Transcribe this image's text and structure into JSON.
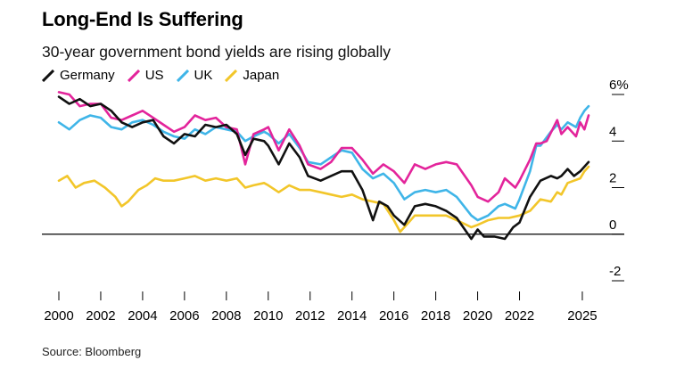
{
  "chart_data": {
    "type": "line",
    "title": "Long-End Is Suffering",
    "subtitle": "30-year government bond yields are rising globally",
    "source": "Source: Bloomberg",
    "xlim": [
      2000,
      2025.3
    ],
    "ylim": [
      -2,
      6
    ],
    "x_ticks": [
      {
        "value": 2000,
        "label": "2000"
      },
      {
        "value": 2002,
        "label": "2002"
      },
      {
        "value": 2004,
        "label": "2004"
      },
      {
        "value": 2006,
        "label": "2006"
      },
      {
        "value": 2008,
        "label": "2008"
      },
      {
        "value": 2010,
        "label": "2010"
      },
      {
        "value": 2012,
        "label": "2012"
      },
      {
        "value": 2014,
        "label": "2014"
      },
      {
        "value": 2016,
        "label": "2016"
      },
      {
        "value": 2018,
        "label": "2018"
      },
      {
        "value": 2020,
        "label": "2020"
      },
      {
        "value": 2022,
        "label": "2022"
      },
      {
        "value": 2025,
        "label": "2025"
      }
    ],
    "y_ticks": [
      {
        "value": 6,
        "label": "6%"
      },
      {
        "value": 4,
        "label": "4"
      },
      {
        "value": 2,
        "label": "2"
      },
      {
        "value": 0,
        "label": "0"
      },
      {
        "value": -2,
        "label": "-2"
      }
    ],
    "series": [
      {
        "name": "Germany",
        "color": "#111111",
        "points": [
          [
            2000.0,
            5.9
          ],
          [
            2000.5,
            5.6
          ],
          [
            2001.0,
            5.8
          ],
          [
            2001.5,
            5.5
          ],
          [
            2002.0,
            5.6
          ],
          [
            2002.5,
            5.3
          ],
          [
            2003.0,
            4.8
          ],
          [
            2003.5,
            4.6
          ],
          [
            2004.0,
            4.8
          ],
          [
            2004.5,
            4.9
          ],
          [
            2005.0,
            4.2
          ],
          [
            2005.5,
            3.9
          ],
          [
            2006.0,
            4.3
          ],
          [
            2006.5,
            4.2
          ],
          [
            2007.0,
            4.7
          ],
          [
            2007.5,
            4.6
          ],
          [
            2008.0,
            4.7
          ],
          [
            2008.5,
            4.3
          ],
          [
            2008.9,
            3.4
          ],
          [
            2009.3,
            4.1
          ],
          [
            2009.8,
            4.0
          ],
          [
            2010.0,
            3.8
          ],
          [
            2010.5,
            3.0
          ],
          [
            2011.0,
            3.9
          ],
          [
            2011.5,
            3.3
          ],
          [
            2011.9,
            2.5
          ],
          [
            2012.5,
            2.3
          ],
          [
            2013.0,
            2.5
          ],
          [
            2013.5,
            2.7
          ],
          [
            2014.0,
            2.7
          ],
          [
            2014.5,
            1.9
          ],
          [
            2015.0,
            0.6
          ],
          [
            2015.3,
            1.4
          ],
          [
            2015.7,
            1.2
          ],
          [
            2016.0,
            0.8
          ],
          [
            2016.5,
            0.4
          ],
          [
            2017.0,
            1.2
          ],
          [
            2017.5,
            1.3
          ],
          [
            2018.0,
            1.2
          ],
          [
            2018.5,
            1.0
          ],
          [
            2019.0,
            0.7
          ],
          [
            2019.7,
            -0.2
          ],
          [
            2020.0,
            0.2
          ],
          [
            2020.3,
            -0.1
          ],
          [
            2020.8,
            -0.1
          ],
          [
            2021.3,
            -0.2
          ],
          [
            2021.7,
            0.3
          ],
          [
            2022.0,
            0.5
          ],
          [
            2022.5,
            1.6
          ],
          [
            2023.0,
            2.3
          ],
          [
            2023.5,
            2.5
          ],
          [
            2023.8,
            2.4
          ],
          [
            2024.0,
            2.5
          ],
          [
            2024.3,
            2.8
          ],
          [
            2024.6,
            2.5
          ],
          [
            2024.9,
            2.7
          ],
          [
            2025.1,
            2.9
          ],
          [
            2025.3,
            3.1
          ]
        ]
      },
      {
        "name": "US",
        "color": "#e3249b",
        "points": [
          [
            2000.0,
            6.1
          ],
          [
            2000.5,
            6.0
          ],
          [
            2001.0,
            5.5
          ],
          [
            2001.5,
            5.6
          ],
          [
            2002.0,
            5.6
          ],
          [
            2002.5,
            5.0
          ],
          [
            2003.0,
            4.9
          ],
          [
            2003.5,
            5.1
          ],
          [
            2004.0,
            5.3
          ],
          [
            2004.5,
            5.0
          ],
          [
            2005.0,
            4.7
          ],
          [
            2005.5,
            4.4
          ],
          [
            2006.0,
            4.6
          ],
          [
            2006.5,
            5.1
          ],
          [
            2007.0,
            4.9
          ],
          [
            2007.5,
            5.0
          ],
          [
            2008.0,
            4.6
          ],
          [
            2008.5,
            4.5
          ],
          [
            2008.9,
            3.0
          ],
          [
            2009.3,
            4.3
          ],
          [
            2009.8,
            4.5
          ],
          [
            2010.0,
            4.6
          ],
          [
            2010.5,
            3.6
          ],
          [
            2011.0,
            4.5
          ],
          [
            2011.5,
            3.8
          ],
          [
            2011.9,
            3.0
          ],
          [
            2012.5,
            2.8
          ],
          [
            2013.0,
            3.1
          ],
          [
            2013.5,
            3.7
          ],
          [
            2014.0,
            3.7
          ],
          [
            2014.5,
            3.2
          ],
          [
            2015.0,
            2.6
          ],
          [
            2015.5,
            3.0
          ],
          [
            2016.0,
            2.7
          ],
          [
            2016.5,
            2.2
          ],
          [
            2017.0,
            3.0
          ],
          [
            2017.5,
            2.8
          ],
          [
            2018.0,
            3.0
          ],
          [
            2018.5,
            3.1
          ],
          [
            2019.0,
            3.0
          ],
          [
            2019.7,
            2.1
          ],
          [
            2020.0,
            1.6
          ],
          [
            2020.5,
            1.4
          ],
          [
            2021.0,
            1.8
          ],
          [
            2021.3,
            2.4
          ],
          [
            2021.8,
            2.0
          ],
          [
            2022.0,
            2.3
          ],
          [
            2022.5,
            3.2
          ],
          [
            2022.8,
            3.9
          ],
          [
            2023.0,
            3.9
          ],
          [
            2023.3,
            4.0
          ],
          [
            2023.8,
            4.9
          ],
          [
            2024.0,
            4.3
          ],
          [
            2024.3,
            4.6
          ],
          [
            2024.7,
            4.2
          ],
          [
            2024.9,
            4.8
          ],
          [
            2025.1,
            4.5
          ],
          [
            2025.3,
            5.1
          ]
        ]
      },
      {
        "name": "UK",
        "color": "#3fb5e8",
        "points": [
          [
            2000.0,
            4.8
          ],
          [
            2000.5,
            4.5
          ],
          [
            2001.0,
            4.9
          ],
          [
            2001.5,
            5.1
          ],
          [
            2002.0,
            5.0
          ],
          [
            2002.5,
            4.6
          ],
          [
            2003.0,
            4.5
          ],
          [
            2003.5,
            4.8
          ],
          [
            2004.0,
            4.9
          ],
          [
            2004.5,
            4.7
          ],
          [
            2005.0,
            4.4
          ],
          [
            2005.5,
            4.2
          ],
          [
            2006.0,
            4.1
          ],
          [
            2006.5,
            4.5
          ],
          [
            2007.0,
            4.3
          ],
          [
            2007.5,
            4.6
          ],
          [
            2008.0,
            4.5
          ],
          [
            2008.5,
            4.4
          ],
          [
            2008.9,
            4.0
          ],
          [
            2009.3,
            4.2
          ],
          [
            2009.8,
            4.4
          ],
          [
            2010.0,
            4.3
          ],
          [
            2010.5,
            3.9
          ],
          [
            2011.0,
            4.3
          ],
          [
            2011.5,
            3.7
          ],
          [
            2011.9,
            3.1
          ],
          [
            2012.5,
            3.0
          ],
          [
            2013.0,
            3.3
          ],
          [
            2013.5,
            3.6
          ],
          [
            2014.0,
            3.5
          ],
          [
            2014.5,
            2.8
          ],
          [
            2015.0,
            2.4
          ],
          [
            2015.5,
            2.6
          ],
          [
            2016.0,
            2.2
          ],
          [
            2016.5,
            1.5
          ],
          [
            2017.0,
            1.8
          ],
          [
            2017.5,
            1.9
          ],
          [
            2018.0,
            1.8
          ],
          [
            2018.5,
            1.9
          ],
          [
            2019.0,
            1.6
          ],
          [
            2019.7,
            0.8
          ],
          [
            2020.0,
            0.6
          ],
          [
            2020.5,
            0.8
          ],
          [
            2021.0,
            1.2
          ],
          [
            2021.3,
            1.3
          ],
          [
            2021.8,
            1.1
          ],
          [
            2022.0,
            1.5
          ],
          [
            2022.5,
            2.7
          ],
          [
            2022.8,
            3.8
          ],
          [
            2023.0,
            3.8
          ],
          [
            2023.5,
            4.4
          ],
          [
            2023.8,
            4.7
          ],
          [
            2024.0,
            4.5
          ],
          [
            2024.3,
            4.8
          ],
          [
            2024.7,
            4.6
          ],
          [
            2024.9,
            5.0
          ],
          [
            2025.1,
            5.3
          ],
          [
            2025.3,
            5.5
          ]
        ]
      },
      {
        "name": "Japan",
        "color": "#f2c62a",
        "points": [
          [
            2000.0,
            2.3
          ],
          [
            2000.4,
            2.5
          ],
          [
            2000.8,
            2.0
          ],
          [
            2001.2,
            2.2
          ],
          [
            2001.7,
            2.3
          ],
          [
            2002.2,
            2.0
          ],
          [
            2002.7,
            1.6
          ],
          [
            2003.0,
            1.2
          ],
          [
            2003.3,
            1.4
          ],
          [
            2003.8,
            1.9
          ],
          [
            2004.2,
            2.1
          ],
          [
            2004.6,
            2.4
          ],
          [
            2005.0,
            2.3
          ],
          [
            2005.5,
            2.3
          ],
          [
            2006.0,
            2.4
          ],
          [
            2006.5,
            2.5
          ],
          [
            2007.0,
            2.3
          ],
          [
            2007.5,
            2.4
          ],
          [
            2008.0,
            2.3
          ],
          [
            2008.5,
            2.4
          ],
          [
            2008.9,
            2.0
          ],
          [
            2009.3,
            2.1
          ],
          [
            2009.8,
            2.2
          ],
          [
            2010.0,
            2.1
          ],
          [
            2010.5,
            1.8
          ],
          [
            2011.0,
            2.1
          ],
          [
            2011.5,
            1.9
          ],
          [
            2012.0,
            1.9
          ],
          [
            2012.5,
            1.8
          ],
          [
            2013.0,
            1.7
          ],
          [
            2013.5,
            1.6
          ],
          [
            2014.0,
            1.7
          ],
          [
            2014.5,
            1.5
          ],
          [
            2015.0,
            1.4
          ],
          [
            2015.5,
            1.3
          ],
          [
            2016.0,
            0.6
          ],
          [
            2016.3,
            0.1
          ],
          [
            2016.7,
            0.5
          ],
          [
            2017.0,
            0.8
          ],
          [
            2017.5,
            0.8
          ],
          [
            2018.0,
            0.8
          ],
          [
            2018.5,
            0.8
          ],
          [
            2019.0,
            0.6
          ],
          [
            2019.7,
            0.3
          ],
          [
            2020.0,
            0.4
          ],
          [
            2020.5,
            0.6
          ],
          [
            2021.0,
            0.7
          ],
          [
            2021.5,
            0.7
          ],
          [
            2022.0,
            0.8
          ],
          [
            2022.5,
            1.0
          ],
          [
            2023.0,
            1.5
          ],
          [
            2023.5,
            1.4
          ],
          [
            2023.8,
            1.8
          ],
          [
            2024.0,
            1.7
          ],
          [
            2024.3,
            2.2
          ],
          [
            2024.6,
            2.3
          ],
          [
            2024.9,
            2.4
          ],
          [
            2025.1,
            2.7
          ],
          [
            2025.3,
            2.9
          ]
        ]
      }
    ]
  }
}
